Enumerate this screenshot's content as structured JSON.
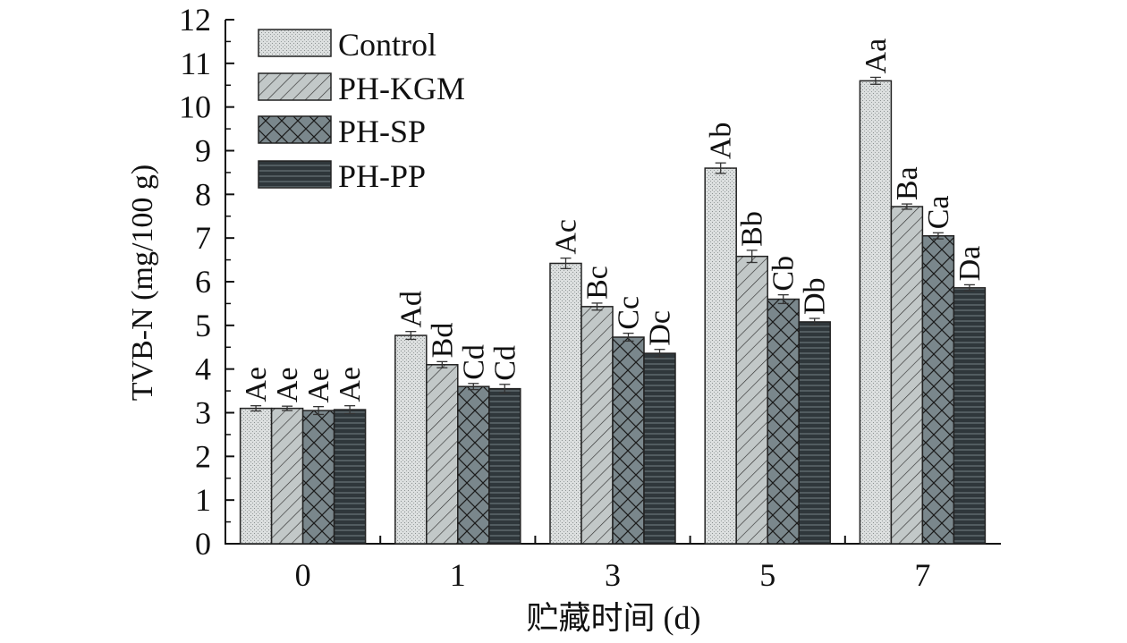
{
  "chart_data": {
    "type": "bar",
    "title": "",
    "xlabel": "贮藏时间 (d)",
    "ylabel": "TVB-N (mg/100 g)",
    "categories": [
      "0",
      "1",
      "3",
      "5",
      "7"
    ],
    "ylim": [
      0,
      12
    ],
    "yticks": [
      "0",
      "1",
      "2",
      "3",
      "4",
      "5",
      "6",
      "7",
      "8",
      "9",
      "10",
      "11",
      "12"
    ],
    "grid": false,
    "legend_position": "top-left",
    "series": [
      {
        "name": "Control",
        "color": "#d9dcdc",
        "pattern": "dots",
        "values": [
          3.1,
          4.77,
          6.42,
          8.6,
          10.6
        ],
        "errors": [
          0.06,
          0.09,
          0.12,
          0.12,
          0.08
        ],
        "labels": [
          "Ae",
          "Ad",
          "Ac",
          "Ab",
          "Aa"
        ]
      },
      {
        "name": "PH-KGM",
        "color": "#bfc5c5",
        "pattern": "diagonal",
        "values": [
          3.1,
          4.1,
          5.43,
          6.58,
          7.72
        ],
        "errors": [
          0.05,
          0.07,
          0.08,
          0.14,
          0.06
        ],
        "labels": [
          "Ae",
          "Bd",
          "Bc",
          "Bb",
          "Ba"
        ]
      },
      {
        "name": "PH-SP",
        "color": "#7a878c",
        "pattern": "crosshatch",
        "values": [
          3.05,
          3.6,
          4.73,
          5.6,
          7.05
        ],
        "errors": [
          0.09,
          0.07,
          0.09,
          0.1,
          0.07
        ],
        "labels": [
          "Ae",
          "Cd",
          "Cc",
          "Cb",
          "Ca"
        ]
      },
      {
        "name": "PH-PP",
        "color": "#333b3f",
        "pattern": "horizontal",
        "values": [
          3.07,
          3.55,
          4.36,
          5.08,
          5.86
        ],
        "errors": [
          0.09,
          0.1,
          0.09,
          0.08,
          0.07
        ],
        "labels": [
          "Ae",
          "Cd",
          "Dc",
          "Db",
          "Da"
        ]
      }
    ]
  }
}
